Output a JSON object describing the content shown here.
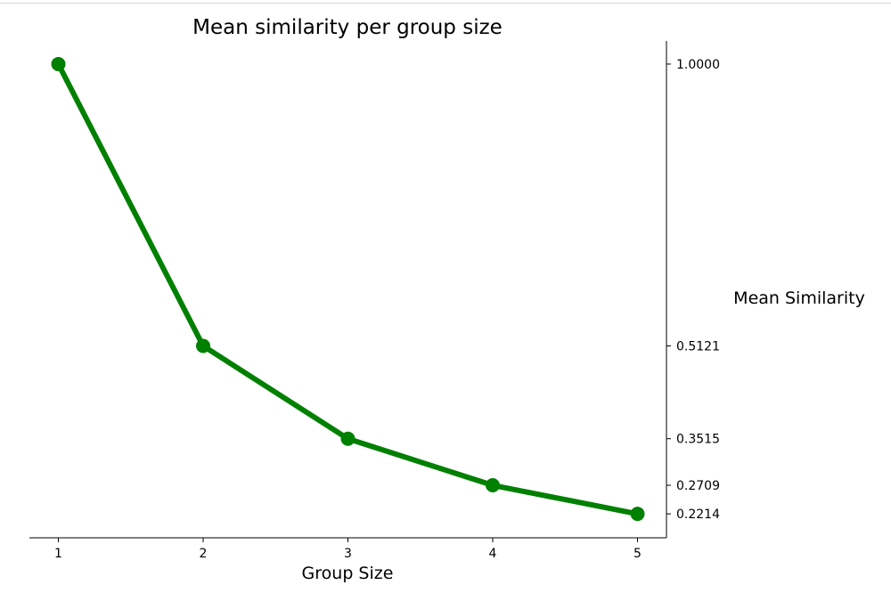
{
  "chart_data": {
    "type": "line",
    "title": "Mean similarity per group size",
    "xlabel": "Group Size",
    "ylabel": "Mean Similarity",
    "x": [
      1,
      2,
      3,
      4,
      5
    ],
    "values": [
      1.0,
      0.5121,
      0.3515,
      0.2709,
      0.2214
    ],
    "xticks": [
      "1",
      "2",
      "3",
      "4",
      "5"
    ],
    "yticks": [
      "1.0000",
      "0.5121",
      "0.3515",
      "0.2709",
      "0.2214"
    ],
    "ytick_values": [
      1.0,
      0.5121,
      0.3515,
      0.2709,
      0.2214
    ],
    "xlim": [
      0.8,
      5.2
    ],
    "ylim": [
      0.18,
      1.04
    ],
    "y_axis_position": "right",
    "grid": false,
    "legend": "none",
    "color": "#008000"
  }
}
